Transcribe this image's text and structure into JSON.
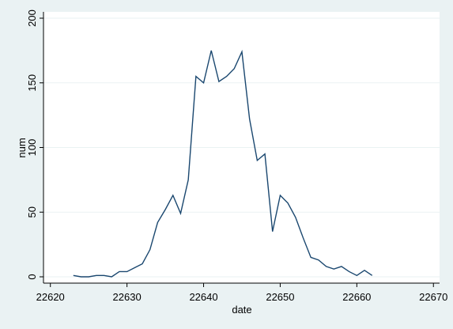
{
  "chart_data": {
    "type": "line",
    "x_label": "date",
    "y_label": "num",
    "x": [
      22623,
      22624,
      22625,
      22626,
      22627,
      22628,
      22629,
      22630,
      22631,
      22632,
      22633,
      22634,
      22635,
      22636,
      22637,
      22638,
      22639,
      22640,
      22641,
      22642,
      22643,
      22644,
      22645,
      22646,
      22647,
      22648,
      22649,
      22650,
      22651,
      22652,
      22653,
      22654,
      22655,
      22656,
      22657,
      22658,
      22659,
      22660,
      22661,
      22662
    ],
    "series": [
      {
        "color": "#1a476f",
        "values": [
          1,
          0,
          0,
          1,
          1,
          0,
          4,
          4,
          7,
          10,
          21,
          42,
          52,
          63,
          49,
          75,
          155,
          150,
          175,
          151,
          155,
          161,
          174,
          122,
          90,
          95,
          35,
          63,
          57,
          46,
          30,
          15,
          13,
          8,
          6,
          8,
          4,
          1,
          5,
          1
        ]
      }
    ],
    "xlim": [
      22619.1,
      22670.8
    ],
    "xticks": [
      22620,
      22630,
      22640,
      22650,
      22660,
      22670
    ],
    "ylim": [
      -4.9,
      204.9
    ],
    "yticks": [
      0,
      50,
      100,
      150,
      200
    ],
    "grid": true
  }
}
